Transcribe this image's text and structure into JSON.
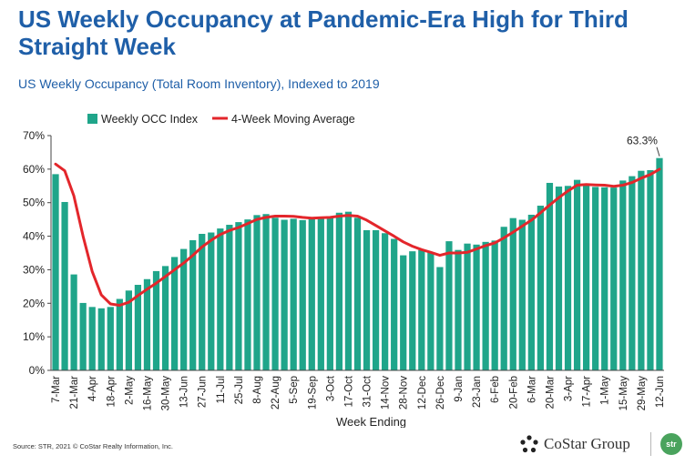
{
  "header": {
    "title": "US Weekly Occupancy at Pandemic-Era High for Third Straight Week",
    "subtitle": "US Weekly Occupancy (Total Room Inventory), Indexed to 2019"
  },
  "footer": {
    "source": "Source: STR, 2021 © CoStar Realty Information, Inc.",
    "costar_logo_text": "CoStar Group",
    "str_logo_text": "str"
  },
  "colors": {
    "title": "#1f5fa8",
    "bar": "#1fa58a",
    "line": "#e3262b"
  },
  "chart_data": {
    "type": "bar",
    "ylim": [
      0,
      70
    ],
    "yticks": [
      0,
      10,
      20,
      30,
      40,
      50,
      60,
      70
    ],
    "ytick_suffix": "%",
    "xlabel": "Week Ending",
    "ylabel": "",
    "grid": false,
    "legend_position": "top-left",
    "categories": [
      "7-Mar",
      "14-Mar",
      "21-Mar",
      "28-Mar",
      "4-Apr",
      "11-Apr",
      "18-Apr",
      "25-Apr",
      "2-May",
      "9-May",
      "16-May",
      "23-May",
      "30-May",
      "6-Jun",
      "13-Jun",
      "20-Jun",
      "27-Jun",
      "4-Jul",
      "11-Jul",
      "18-Jul",
      "25-Jul",
      "1-Aug",
      "8-Aug",
      "15-Aug",
      "22-Aug",
      "29-Aug",
      "5-Sep",
      "12-Sep",
      "19-Sep",
      "26-Sep",
      "3-Oct",
      "10-Oct",
      "17-Oct",
      "24-Oct",
      "31-Oct",
      "7-Nov",
      "14-Nov",
      "21-Nov",
      "28-Nov",
      "5-Dec",
      "12-Dec",
      "19-Dec",
      "26-Dec",
      "2-Jan",
      "9-Jan",
      "16-Jan",
      "23-Jan",
      "30-Jan",
      "6-Feb",
      "13-Feb",
      "20-Feb",
      "27-Feb",
      "6-Mar",
      "13-Mar",
      "20-Mar",
      "27-Mar",
      "3-Apr",
      "10-Apr",
      "17-Apr",
      "24-Apr",
      "1-May",
      "8-May",
      "15-May",
      "22-May",
      "29-May",
      "5-Jun",
      "12-Jun"
    ],
    "tick_labels_every": 2,
    "series": [
      {
        "name": "Weekly OCC Index",
        "kind": "bar",
        "values": [
          58.5,
          50.2,
          28.6,
          20.1,
          18.9,
          18.5,
          18.9,
          21.3,
          23.8,
          25.5,
          27.2,
          29.6,
          31.1,
          33.8,
          36.2,
          38.8,
          40.7,
          41.1,
          42.3,
          43.4,
          44.2,
          45.0,
          46.3,
          46.6,
          45.5,
          44.9,
          45.2,
          44.8,
          45.3,
          45.6,
          45.9,
          47.0,
          47.3,
          45.5,
          41.8,
          41.8,
          40.9,
          39.2,
          34.3,
          35.5,
          35.9,
          35.1,
          30.8,
          38.5,
          35.9,
          37.8,
          37.5,
          38.3,
          38.7,
          42.8,
          45.4,
          44.9,
          46.4,
          49.1,
          55.9,
          54.8,
          55.0,
          56.8,
          55.6,
          54.7,
          54.6,
          54.5,
          56.6,
          57.9,
          59.5,
          59.7,
          63.3
        ]
      },
      {
        "name": "4-Week Moving Average",
        "kind": "line",
        "values": [
          61.5,
          59.5,
          52.0,
          40.0,
          29.5,
          22.5,
          19.8,
          19.4,
          20.3,
          22.3,
          24.2,
          26.0,
          28.0,
          30.0,
          32.0,
          34.3,
          36.8,
          38.8,
          40.5,
          41.7,
          42.6,
          43.8,
          45.0,
          45.6,
          46.0,
          46.0,
          45.9,
          45.6,
          45.4,
          45.5,
          45.6,
          46.0,
          46.2,
          46.0,
          44.8,
          43.2,
          41.6,
          40.0,
          38.3,
          37.0,
          36.0,
          35.2,
          34.3,
          35.0,
          35.0,
          35.2,
          36.2,
          37.2,
          38.0,
          39.5,
          41.2,
          43.0,
          44.8,
          47.0,
          49.3,
          51.5,
          53.5,
          55.2,
          55.4,
          55.3,
          55.2,
          54.9,
          55.2,
          56.0,
          57.3,
          58.4,
          60.0
        ]
      }
    ],
    "annotations": [
      {
        "text": "63.3%",
        "category": "12-Jun",
        "value": 63.3
      }
    ]
  }
}
